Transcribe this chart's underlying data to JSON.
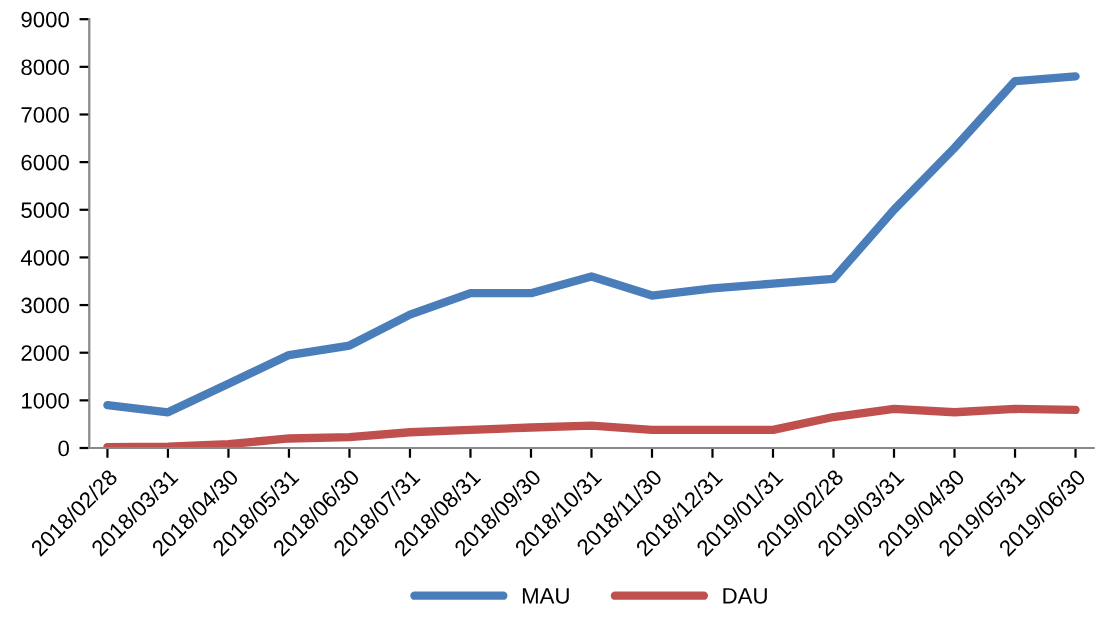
{
  "chart_data": {
    "type": "line",
    "categories": [
      "2018/02/28",
      "2018/03/31",
      "2018/04/30",
      "2018/05/31",
      "2018/06/30",
      "2018/07/31",
      "2018/08/31",
      "2018/09/30",
      "2018/10/31",
      "2018/11/30",
      "2018/12/31",
      "2019/01/31",
      "2019/02/28",
      "2019/03/31",
      "2019/04/30",
      "2019/05/31",
      "2019/06/30"
    ],
    "series": [
      {
        "name": "MAU",
        "color": "#4a7ebb",
        "values": [
          900,
          750,
          1350,
          1950,
          2150,
          2800,
          3250,
          3250,
          3600,
          3200,
          3350,
          3450,
          3550,
          5000,
          6300,
          7700,
          7800
        ]
      },
      {
        "name": "DAU",
        "color": "#c0504d",
        "values": [
          20,
          30,
          80,
          200,
          230,
          330,
          380,
          430,
          470,
          380,
          380,
          380,
          650,
          820,
          750,
          820,
          800
        ]
      }
    ],
    "ylim": [
      0,
      9000
    ],
    "yticks": [
      0,
      1000,
      2000,
      3000,
      4000,
      5000,
      6000,
      7000,
      8000,
      9000
    ],
    "grid": false,
    "legend": "bottom",
    "marker": "none",
    "line_style": "solid"
  }
}
